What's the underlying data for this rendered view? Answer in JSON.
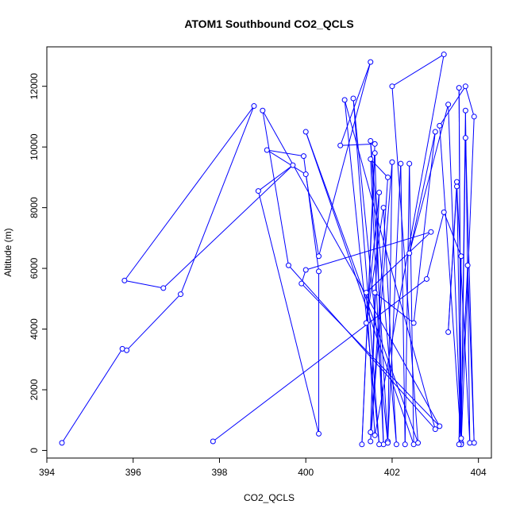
{
  "chart_data": {
    "type": "line",
    "title": "ATOM1 Southbound CO2_QCLS",
    "xlabel": "CO2_QCLS",
    "ylabel": "Altitude (m)",
    "xlim": [
      394,
      404.3
    ],
    "ylim": [
      -250,
      13300
    ],
    "xticks": [
      394,
      396,
      398,
      400,
      402,
      404
    ],
    "yticks": [
      0,
      2000,
      4000,
      6000,
      8000,
      10000,
      12000
    ],
    "grid": false,
    "color": "#0000ff",
    "marker": "open-circle",
    "series": [
      {
        "points": [
          [
            394.35,
            250
          ],
          [
            395.75,
            3350
          ],
          [
            395.85,
            3300
          ],
          [
            397.1,
            5150
          ],
          [
            398.8,
            11350
          ],
          [
            395.8,
            5600
          ],
          [
            396.7,
            5350
          ],
          [
            399.7,
            9400
          ],
          [
            398.9,
            8550
          ],
          [
            400.3,
            550
          ],
          [
            400.3,
            5900
          ],
          [
            399.95,
            9700
          ],
          [
            399.1,
            9900
          ],
          [
            400.0,
            9100
          ],
          [
            400.3,
            6400
          ],
          [
            401.5,
            12800
          ],
          [
            400.8,
            10050
          ],
          [
            401.6,
            10100
          ],
          [
            401.3,
            200
          ],
          [
            401.6,
            9800
          ],
          [
            401.8,
            200
          ],
          [
            401.5,
            9600
          ],
          [
            401.9,
            9000
          ],
          [
            401.5,
            300
          ],
          [
            402.0,
            9500
          ],
          [
            401.9,
            300
          ],
          [
            402.2,
            9450
          ],
          [
            402.3,
            200
          ],
          [
            402.4,
            9450
          ],
          [
            402.5,
            200
          ],
          [
            400.0,
            10500
          ],
          [
            402.6,
            250
          ],
          [
            402.0,
            12000
          ],
          [
            403.2,
            13050
          ],
          [
            401.6,
            500
          ],
          [
            401.4,
            5200
          ],
          [
            402.9,
            7200
          ],
          [
            400.0,
            5950
          ],
          [
            399.9,
            5500
          ],
          [
            403.1,
            800
          ],
          [
            399.0,
            11200
          ],
          [
            399.6,
            6100
          ],
          [
            403.0,
            700
          ],
          [
            400.9,
            11550
          ],
          [
            401.7,
            200
          ],
          [
            401.1,
            11600
          ],
          [
            401.9,
            250
          ],
          [
            401.5,
            10200
          ],
          [
            402.1,
            200
          ],
          [
            401.8,
            8000
          ],
          [
            401.4,
            4200
          ],
          [
            401.7,
            8500
          ],
          [
            401.5,
            600
          ],
          [
            401.6,
            5200
          ],
          [
            402.5,
            4200
          ],
          [
            403.0,
            10500
          ],
          [
            402.4,
            6500
          ],
          [
            403.3,
            11400
          ],
          [
            403.6,
            250
          ],
          [
            403.1,
            10700
          ],
          [
            403.7,
            12000
          ],
          [
            403.9,
            11000
          ],
          [
            403.6,
            200
          ],
          [
            403.55,
            11950
          ],
          [
            403.6,
            400
          ],
          [
            403.7,
            11200
          ],
          [
            403.8,
            250
          ],
          [
            403.5,
            8700
          ],
          [
            403.3,
            3900
          ],
          [
            403.5,
            8850
          ],
          [
            403.6,
            200
          ],
          [
            403.7,
            10300
          ],
          [
            403.9,
            250
          ],
          [
            403.75,
            6100
          ],
          [
            403.55,
            200
          ],
          [
            403.6,
            6400
          ],
          [
            403.2,
            7850
          ],
          [
            402.8,
            5650
          ],
          [
            397.85,
            300
          ]
        ]
      }
    ]
  }
}
